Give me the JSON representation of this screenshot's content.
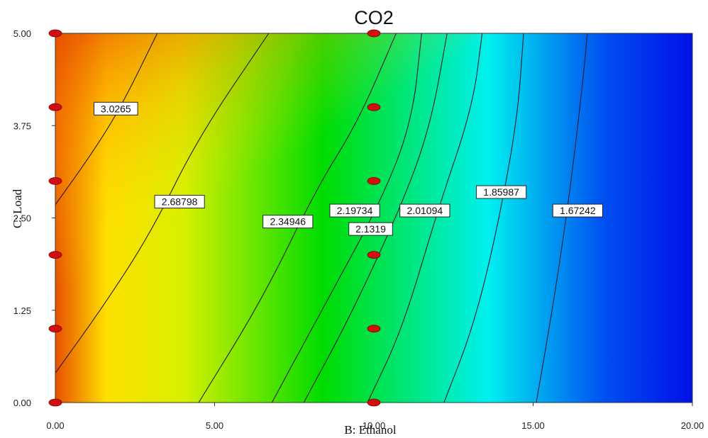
{
  "chart_data": {
    "type": "contour",
    "title": "CO2",
    "xlabel": "B: Ethanol",
    "ylabel": "C: Load",
    "xlim": [
      0,
      20
    ],
    "ylim": [
      0,
      5
    ],
    "x_ticks": [
      "0.00",
      "5.00",
      "10.00",
      "15.00",
      "20.00"
    ],
    "y_ticks": [
      "0.00",
      "1.25",
      "2.50",
      "3.75",
      "5.00"
    ],
    "colormap": [
      "#e84f00",
      "#ffe000",
      "#d8f000",
      "#00dc00",
      "#00f0f0",
      "#0050f0",
      "#0010e8"
    ],
    "contours": [
      {
        "label": "3.0265",
        "points": [
          [
            0.0,
            2.68
          ],
          [
            1.0,
            3.28
          ],
          [
            2.0,
            3.95
          ],
          [
            3.2,
            5.0
          ]
        ],
        "label_at": [
          1.9,
          3.98
        ]
      },
      {
        "label": "2.68798",
        "points": [
          [
            0.0,
            0.4
          ],
          [
            1.5,
            1.3
          ],
          [
            3.0,
            2.3
          ],
          [
            4.5,
            3.6
          ],
          [
            6.7,
            5.0
          ]
        ],
        "label_at": [
          3.9,
          2.72
        ]
      },
      {
        "label": "2.34946",
        "points": [
          [
            4.5,
            0.0
          ],
          [
            6.5,
            1.4
          ],
          [
            8.2,
            2.9
          ],
          [
            9.5,
            3.8
          ],
          [
            10.7,
            5.0
          ]
        ],
        "label_at": [
          7.3,
          2.45
        ]
      },
      {
        "label": "2.19734",
        "points": [
          [
            6.8,
            0.0
          ],
          [
            8.3,
            1.2
          ],
          [
            10.2,
            2.7
          ],
          [
            11.2,
            3.8
          ],
          [
            11.5,
            5.0
          ]
        ],
        "label_at": [
          9.4,
          2.6
        ]
      },
      {
        "label": "2.1319",
        "points": [
          [
            7.8,
            0.0
          ],
          [
            9.3,
            1.2
          ],
          [
            11.0,
            2.8
          ],
          [
            11.8,
            3.8
          ],
          [
            12.3,
            5.0
          ]
        ],
        "label_at": [
          9.9,
          2.35
        ]
      },
      {
        "label": "2.01094",
        "points": [
          [
            9.8,
            0.0
          ],
          [
            10.9,
            1.0
          ],
          [
            12.0,
            2.6
          ],
          [
            13.1,
            4.0
          ],
          [
            13.4,
            5.0
          ]
        ],
        "label_at": [
          11.6,
          2.6
        ]
      },
      {
        "label": "1.85987",
        "points": [
          [
            12.2,
            0.0
          ],
          [
            13.1,
            1.0
          ],
          [
            13.8,
            2.2
          ],
          [
            14.5,
            3.8
          ],
          [
            14.7,
            5.0
          ]
        ],
        "label_at": [
          14.0,
          2.85
        ]
      },
      {
        "label": "1.67242",
        "points": [
          [
            15.1,
            0.0
          ],
          [
            15.7,
            1.5
          ],
          [
            16.2,
            3.0
          ],
          [
            16.6,
            4.5
          ],
          [
            16.7,
            5.0
          ]
        ],
        "label_at": [
          16.4,
          2.6
        ]
      }
    ],
    "design_points": [
      {
        "x": 0,
        "y": 0
      },
      {
        "x": 0,
        "y": 1
      },
      {
        "x": 0,
        "y": 2
      },
      {
        "x": 0,
        "y": 3
      },
      {
        "x": 0,
        "y": 4
      },
      {
        "x": 0,
        "y": 5
      },
      {
        "x": 10,
        "y": 0
      },
      {
        "x": 10,
        "y": 1
      },
      {
        "x": 10,
        "y": 2
      },
      {
        "x": 10,
        "y": 3
      },
      {
        "x": 10,
        "y": 4
      },
      {
        "x": 10,
        "y": 5
      }
    ],
    "point_color": "#d01010",
    "contour_color": "#2a1a30"
  }
}
